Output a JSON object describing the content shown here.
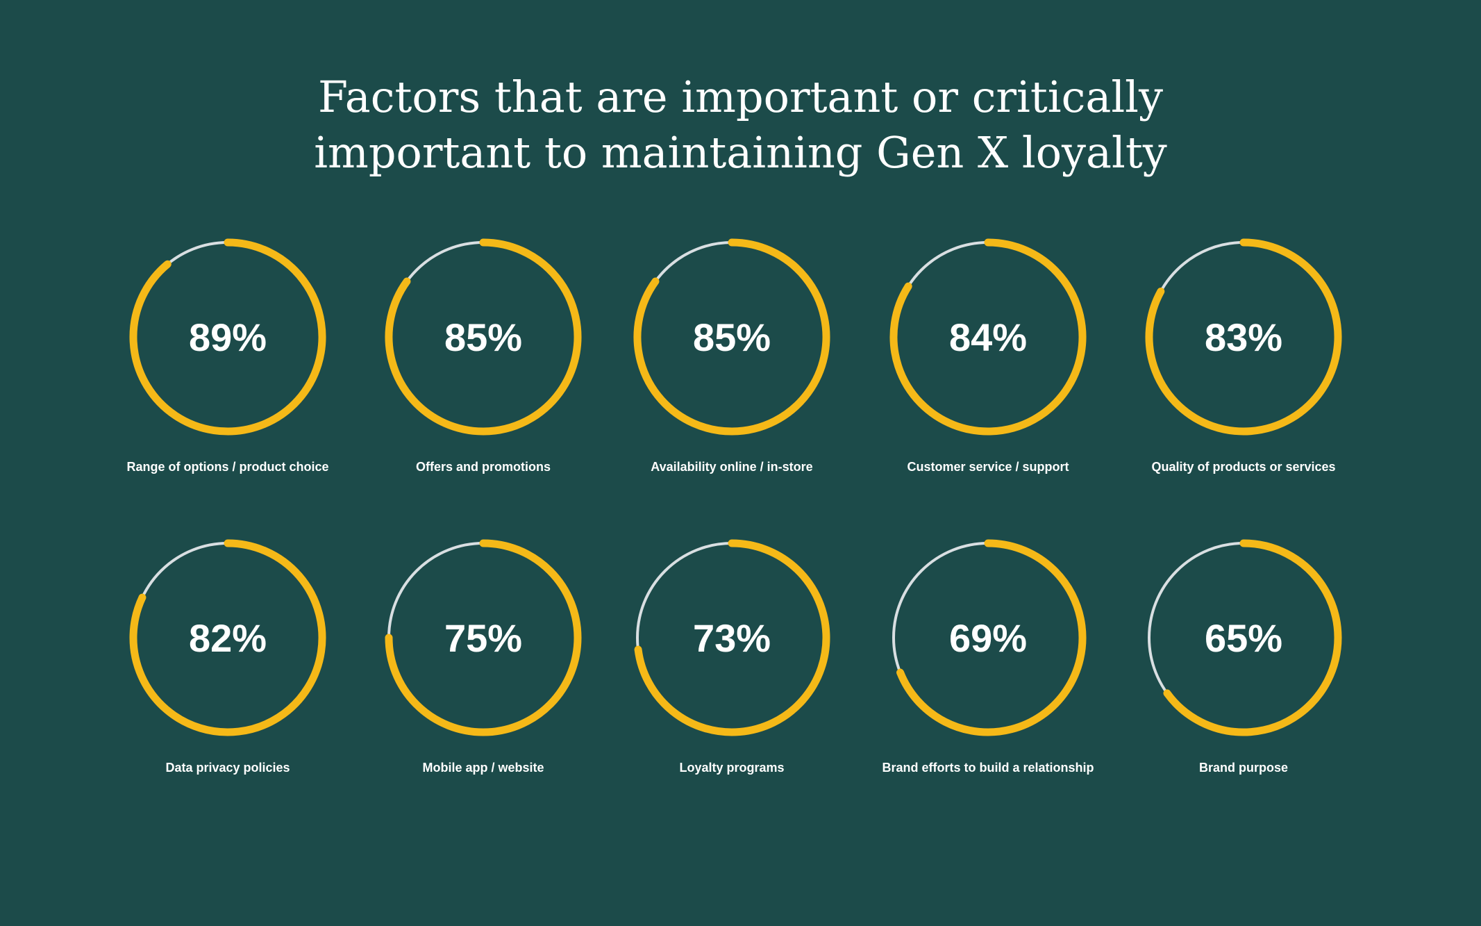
{
  "title_line1": "Factors that are important or critically",
  "title_line2": "important to maintaining Gen X loyalty",
  "colors": {
    "background": "#1c4b4a",
    "progress": "#f5b918",
    "track": "#d9dfe2",
    "text": "#ffffff"
  },
  "chart_data": {
    "type": "donut-progress",
    "title": "Factors that are important or critically important to maintaining Gen X loyalty",
    "unit": "%",
    "max": 100,
    "categories": [
      "Range of options / product choice",
      "Offers and promotions",
      "Availability online / in-store",
      "Customer service / support",
      "Quality of products or services",
      "Data privacy policies",
      "Mobile app / website",
      "Loyalty programs",
      "Brand efforts to build a relationship",
      "Brand purpose"
    ],
    "values": [
      89,
      85,
      85,
      84,
      83,
      82,
      75,
      73,
      69,
      65
    ],
    "value_labels": [
      "89%",
      "85%",
      "85%",
      "84%",
      "83%",
      "82%",
      "75%",
      "73%",
      "69%",
      "65%"
    ]
  }
}
